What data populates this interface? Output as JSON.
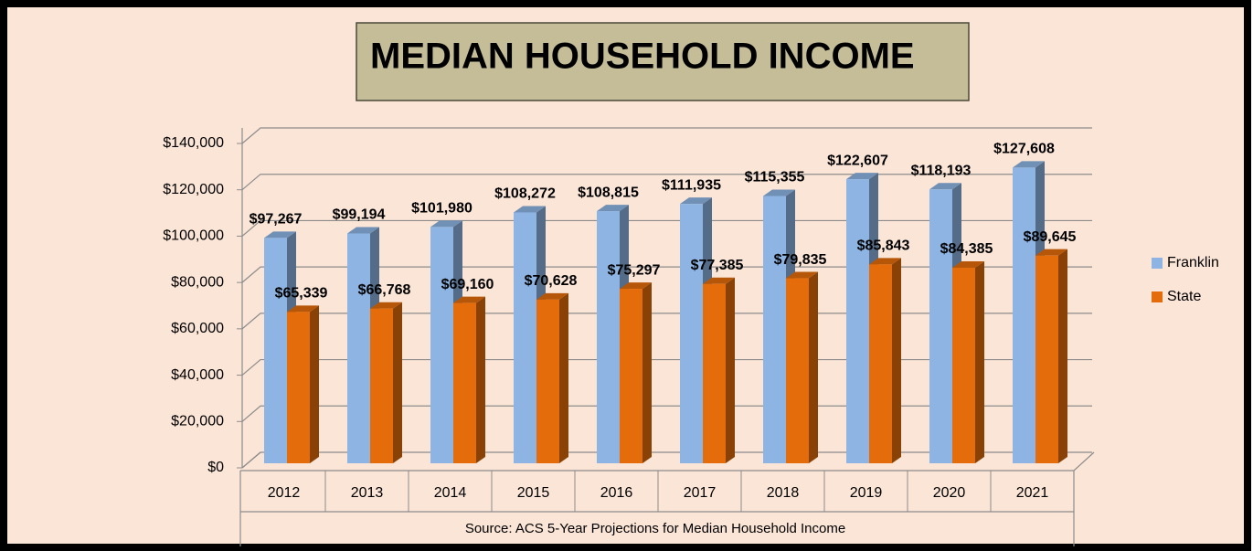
{
  "chart_data": {
    "type": "bar",
    "title": "MEDIAN HOUSEHOLD INCOME",
    "source": "Source: ACS 5-Year Projections for Median Household Income",
    "categories": [
      "2012",
      "2013",
      "2014",
      "2015",
      "2016",
      "2017",
      "2018",
      "2019",
      "2020",
      "2021"
    ],
    "series": [
      {
        "name": "Franklin",
        "color": "#8db4e2",
        "values": [
          97267,
          99194,
          101980,
          108272,
          108815,
          111935,
          115355,
          122607,
          118193,
          127608
        ],
        "value_labels": [
          "$97,267",
          "$99,194",
          "$101,980",
          "$108,272",
          "$108,815",
          "$111,935",
          "$115,355",
          "$122,607",
          "$118,193",
          "$127,608"
        ]
      },
      {
        "name": "State",
        "color": "#e46c0a",
        "values": [
          65339,
          66768,
          69160,
          70628,
          75297,
          77385,
          79835,
          85843,
          84385,
          89645
        ],
        "value_labels": [
          "$65,339",
          "$66,768",
          "$69,160",
          "$70,628",
          "$75,297",
          "$77,385",
          "$79,835",
          "$85,843",
          "$84,385",
          "$89,645"
        ]
      }
    ],
    "ylim": [
      0,
      140000
    ],
    "yticks": [
      {
        "value": 0,
        "label": "$0"
      },
      {
        "value": 20000,
        "label": "$20,000"
      },
      {
        "value": 40000,
        "label": "$40,000"
      },
      {
        "value": 60000,
        "label": "$60,000"
      },
      {
        "value": 80000,
        "label": "$80,000"
      },
      {
        "value": 100000,
        "label": "$100,000"
      },
      {
        "value": 120000,
        "label": "$120,000"
      },
      {
        "value": 140000,
        "label": "$140,000"
      }
    ],
    "grid": true,
    "legend": "right"
  }
}
